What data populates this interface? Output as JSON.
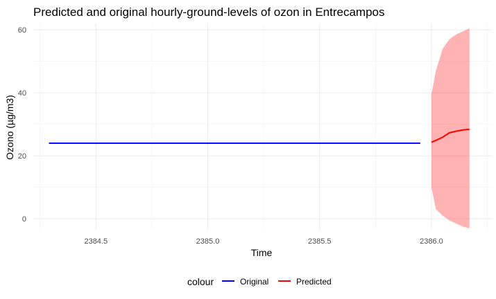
{
  "chart_data": {
    "type": "line",
    "title": "Predicted and original hourly-ground-levels of ozon in Entrecampos",
    "xlabel": "Time",
    "ylabel": "Ozono (µg/m3)",
    "xlim": [
      2384.22,
      2386.27
    ],
    "ylim": [
      -3.5,
      62
    ],
    "x_ticks": [
      2384.5,
      2385.0,
      2385.5,
      2386.0
    ],
    "x_tick_labels": [
      "2384.5",
      "2385.0",
      "2385.5",
      "2386.0"
    ],
    "y_ticks": [
      0,
      20,
      40,
      60
    ],
    "y_tick_labels": [
      "0",
      "20",
      "40",
      "60"
    ],
    "grid": true,
    "legend": {
      "position": "bottom",
      "title": "colour",
      "entries": [
        "Original",
        "Predicted"
      ]
    },
    "series": [
      {
        "name": "Original",
        "color": "#0000ff",
        "x": [
          2384.29,
          2385.0,
          2385.5,
          2385.95
        ],
        "y": [
          24.0,
          24.0,
          24.0,
          24.0
        ]
      },
      {
        "name": "Predicted",
        "color": "#ff0000",
        "x": [
          2386.0,
          2386.02,
          2386.05,
          2386.08,
          2386.11,
          2386.14,
          2386.17
        ],
        "y": [
          24.3,
          24.9,
          25.9,
          27.3,
          27.8,
          28.2,
          28.4
        ]
      }
    ],
    "confidence_band": {
      "series": "Predicted",
      "color": "#ff0000",
      "opacity": 0.3,
      "x": [
        2386.0,
        2386.02,
        2386.05,
        2386.08,
        2386.11,
        2386.14,
        2386.17
      ],
      "lower": [
        10.0,
        3.0,
        1.0,
        -0.5,
        -1.5,
        -2.5,
        -3.0
      ],
      "upper": [
        39.5,
        47.0,
        54.0,
        57.0,
        58.5,
        59.5,
        60.5
      ]
    }
  }
}
